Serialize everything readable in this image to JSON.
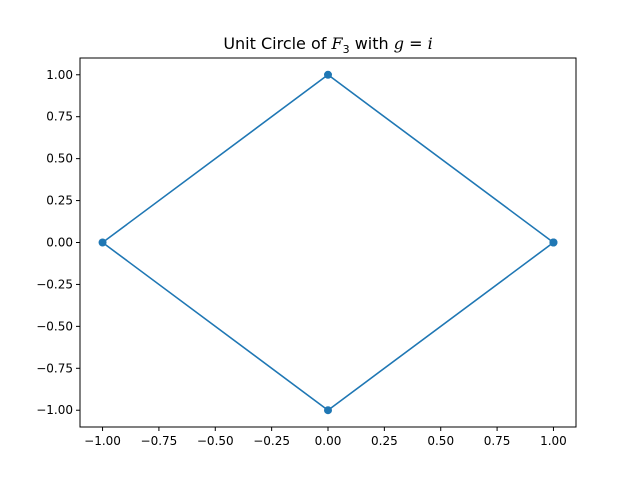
{
  "chart_data": {
    "type": "line",
    "title": {
      "prefix": "Unit Circle of ",
      "field_symbol": "F",
      "field_subscript": "3",
      "middle": " with ",
      "var": "g",
      "equals": " = ",
      "value": "i"
    },
    "xlabel": "",
    "ylabel": "",
    "xlim": [
      -1.1,
      1.1
    ],
    "ylim": [
      -1.1,
      1.1
    ],
    "xticks": [
      -1.0,
      -0.75,
      -0.5,
      -0.25,
      0.0,
      0.25,
      0.5,
      0.75,
      1.0
    ],
    "xtick_labels": [
      "−1.00",
      "−0.75",
      "−0.50",
      "−0.25",
      "0.00",
      "0.25",
      "0.50",
      "0.75",
      "1.00"
    ],
    "yticks": [
      -1.0,
      -0.75,
      -0.5,
      -0.25,
      0.0,
      0.25,
      0.5,
      0.75,
      1.0
    ],
    "ytick_labels": [
      "−1.00",
      "−0.75",
      "−0.50",
      "−0.25",
      "0.00",
      "0.25",
      "0.50",
      "0.75",
      "1.00"
    ],
    "grid": false,
    "series": [
      {
        "color": "#1f77b4",
        "marker": "circle",
        "x": [
          1,
          0,
          -1,
          0,
          1
        ],
        "y": [
          0,
          1,
          0,
          -1,
          0
        ]
      }
    ]
  }
}
